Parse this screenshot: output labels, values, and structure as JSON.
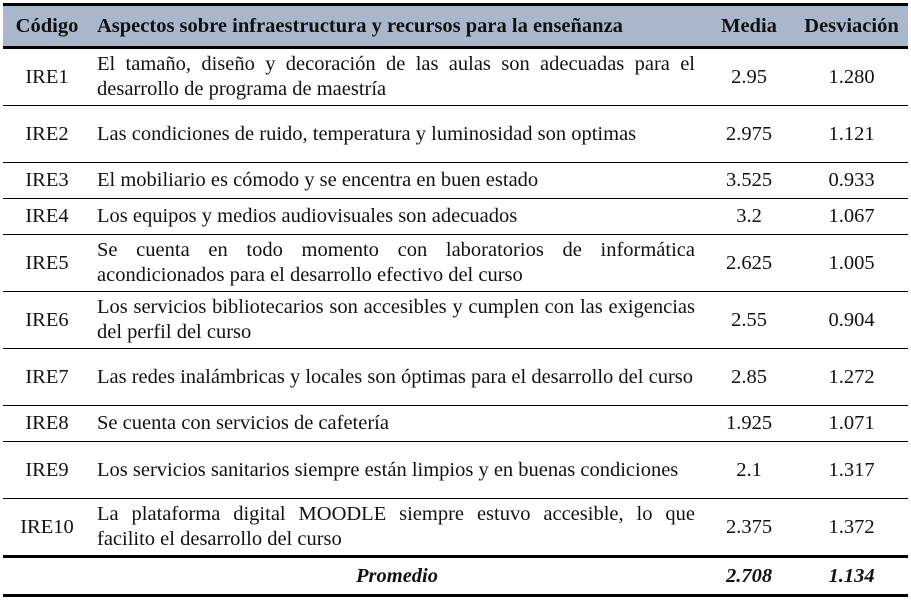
{
  "table": {
    "headers": {
      "code": "Código",
      "aspect": "Aspectos sobre infraestructura y recursos para la enseñanza",
      "mean": "Media",
      "deviation": "Desviación"
    },
    "rows": [
      {
        "code": "IRE1",
        "aspect": "El tamaño, diseño y decoración de las aulas son adecuadas para el desarrollo de programa de maestría",
        "mean": "2.95",
        "deviation": "1.280"
      },
      {
        "code": "IRE2",
        "aspect": "Las condiciones de ruido, temperatura y luminosidad son optimas",
        "mean": "2.975",
        "deviation": "1.121"
      },
      {
        "code": "IRE3",
        "aspect": "El mobiliario es cómodo y se encentra en buen estado",
        "mean": "3.525",
        "deviation": "0.933"
      },
      {
        "code": "IRE4",
        "aspect": "Los equipos y medios audiovisuales son adecuados",
        "mean": "3.2",
        "deviation": "1.067"
      },
      {
        "code": "IRE5",
        "aspect": "Se cuenta en todo momento con laboratorios de informática acondicionados para el desarrollo efectivo del curso",
        "mean": "2.625",
        "deviation": "1.005"
      },
      {
        "code": "IRE6",
        "aspect": "Los servicios bibliotecarios son accesibles y cumplen con las exigencias del perfil del curso",
        "mean": "2.55",
        "deviation": "0.904"
      },
      {
        "code": "IRE7",
        "aspect": "Las redes inalámbricas y locales son óptimas para el desarrollo del curso",
        "mean": "2.85",
        "deviation": "1.272"
      },
      {
        "code": "IRE8",
        "aspect": "Se cuenta con servicios de cafetería",
        "mean": "1.925",
        "deviation": "1.071"
      },
      {
        "code": "IRE9",
        "aspect": "Los servicios sanitarios siempre están limpios y en buenas condiciones",
        "mean": "2.1",
        "deviation": "1.317"
      },
      {
        "code": "IRE10",
        "aspect": "La plataforma digital MOODLE siempre estuvo accesible, lo que facilito el desarrollo del curso",
        "mean": "2.375",
        "deviation": "1.372"
      }
    ],
    "footer": {
      "label": "Promedio",
      "mean": "2.708",
      "deviation": "1.134"
    }
  },
  "colors": {
    "header_background": "#aab7ca",
    "rule": "#000000"
  }
}
